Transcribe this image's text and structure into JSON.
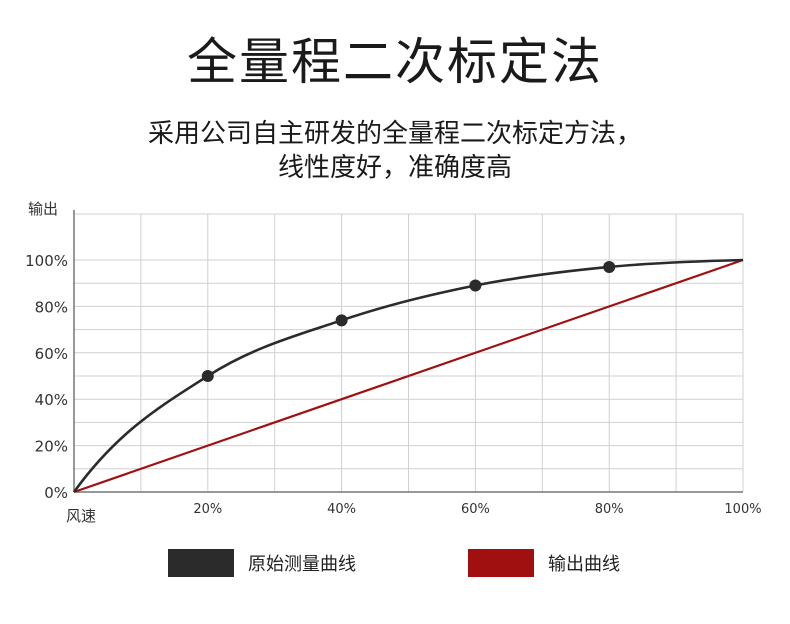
{
  "header": {
    "title": "全量程二次标定法",
    "subtitle_line1": "采用公司自主研发的全量程二次标定方法，",
    "subtitle_line2": "线性度好，准确度高"
  },
  "colors": {
    "measured": "#2b2b2b",
    "output": "#a01010",
    "grid": "#d0d0d0"
  },
  "chart_data": {
    "type": "line",
    "ylabel": "输出",
    "xlabel": "风速",
    "x_ticks": [
      "20%",
      "40%",
      "60%",
      "80%",
      "100%"
    ],
    "y_ticks": [
      "0%",
      "20%",
      "40%",
      "60%",
      "80%",
      "100%"
    ],
    "xlim": [
      0,
      100
    ],
    "ylim": [
      0,
      100
    ],
    "grid": true,
    "legend_position": "bottom",
    "series": [
      {
        "name": "原始测量曲线",
        "x": [
          0,
          20,
          40,
          60,
          80,
          100
        ],
        "y": [
          0,
          50,
          74,
          89,
          97,
          100
        ],
        "markers_at": [
          20,
          40,
          60,
          80
        ]
      },
      {
        "name": "输出曲线",
        "x": [
          0,
          100
        ],
        "y": [
          0,
          100
        ]
      }
    ]
  }
}
